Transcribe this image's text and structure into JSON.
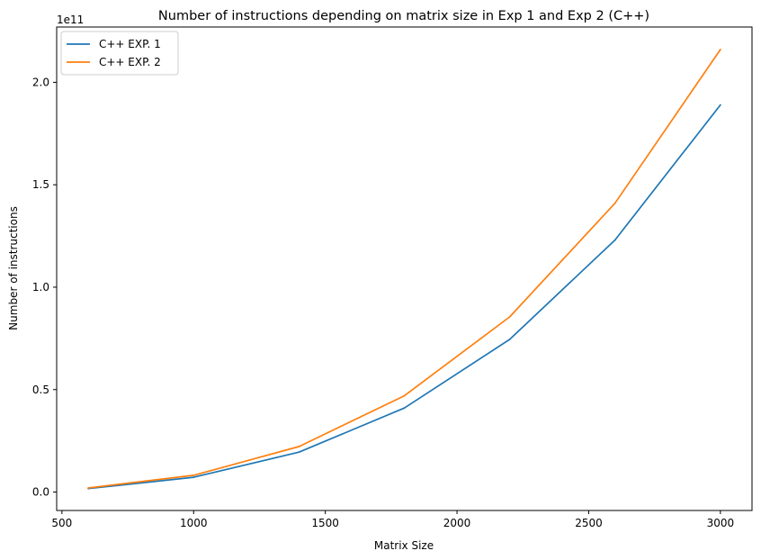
{
  "chart_data": {
    "type": "line",
    "title": "Number of instructions depending on matrix size in Exp 1 and Exp 2 (C++)",
    "xlabel": "Matrix Size",
    "ylabel": "Number of instructions",
    "y_offset_label": "1e11",
    "xlim": [
      480,
      3120
    ],
    "ylim": [
      -0.09,
      2.27
    ],
    "x_ticks": [
      500,
      1000,
      1500,
      2000,
      2500,
      3000
    ],
    "x_tick_labels": [
      "500",
      "1000",
      "1500",
      "2000",
      "2500",
      "3000"
    ],
    "y_ticks": [
      0.0,
      0.5,
      1.0,
      1.5,
      2.0
    ],
    "y_tick_labels": [
      "0.0",
      "0.5",
      "1.0",
      "1.5",
      "2.0"
    ],
    "y_scale_note": "values in units of 1e11",
    "grid": false,
    "legend_position": "top-left",
    "x": [
      600,
      1000,
      1400,
      1800,
      2200,
      2600,
      3000
    ],
    "series": [
      {
        "name": "C++ EXP. 1",
        "color": "#1f77b4",
        "values": [
          0.017,
          0.072,
          0.195,
          0.41,
          0.745,
          1.23,
          1.89
        ]
      },
      {
        "name": "C++ EXP. 2",
        "color": "#ff7f0e",
        "values": [
          0.02,
          0.082,
          0.222,
          0.47,
          0.855,
          1.41,
          2.16
        ]
      }
    ]
  }
}
